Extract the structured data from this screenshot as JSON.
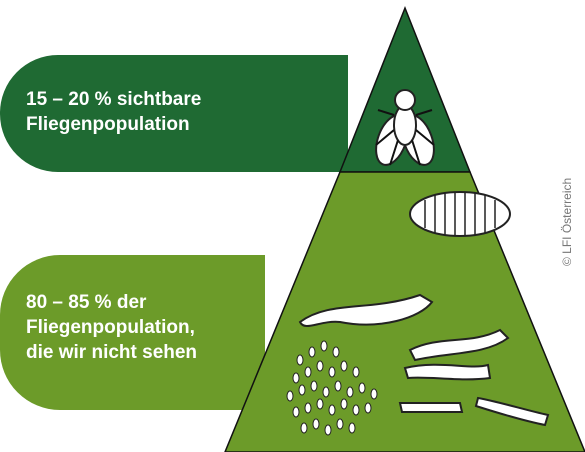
{
  "labels": [
    {
      "lines": [
        "15 – 20 % sichtbare",
        "Fliegenpopulation"
      ]
    },
    {
      "lines": [
        "80 – 85 % der",
        "Fliegenpopulation,",
        "die wir nicht sehen"
      ]
    }
  ],
  "copyright": "© LFI Österreich"
}
